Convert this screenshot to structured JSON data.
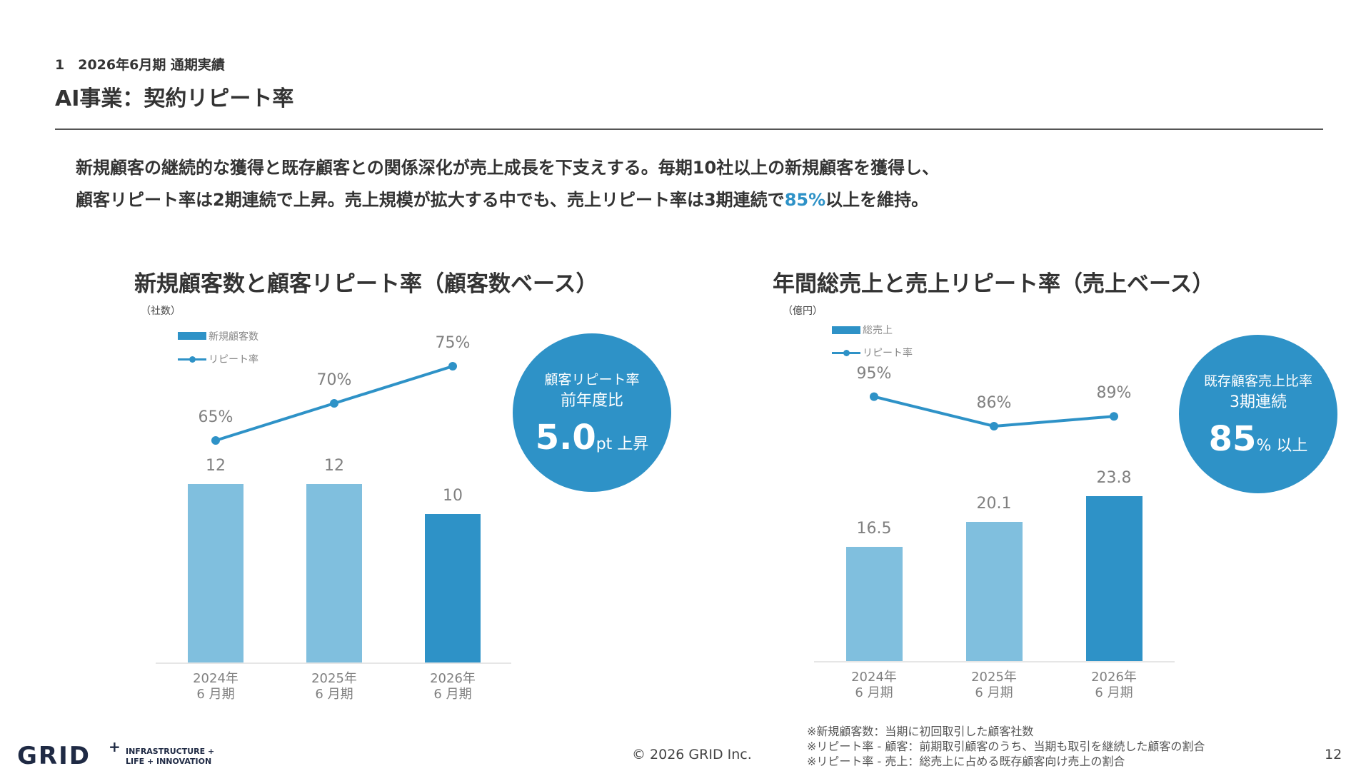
{
  "header": {
    "section": "1　2026年6月期 通期実績",
    "title": "AI事業：契約リピート率"
  },
  "lead": {
    "line1": "新規顧客の継続的な獲得と既存顧客との関係深化が売上成長を下支えする。毎期10社以上の新規顧客を獲得し、",
    "line2_pre": "顧客リピート率は2期連続で上昇。売上規模が拡大する中でも、売上リピート率は3期連続で",
    "line2_hl": "85%",
    "line2_post": "以上を維持。"
  },
  "colors": {
    "accent": "#2e92c7",
    "light_bar": "#80bfde",
    "dark_bar": "#2e92c7",
    "line": "#2e92c7"
  },
  "chart_data": [
    {
      "type": "bar",
      "title": "新規顧客数と顧客リピート率（顧客数ベース）",
      "ylabel": "（社数）",
      "categories": [
        [
          "2024年",
          "6 月期"
        ],
        [
          "2025年",
          "6 月期"
        ],
        [
          "2026年",
          "6 月期"
        ]
      ],
      "series": [
        {
          "name": "新規顧客数",
          "type": "bar",
          "values": [
            12,
            12,
            10
          ],
          "labels": [
            "12",
            "12",
            "10"
          ],
          "colors": [
            "#80bfde",
            "#80bfde",
            "#2e92c7"
          ]
        },
        {
          "name": "リピート率",
          "type": "line",
          "values": [
            65,
            70,
            75
          ],
          "labels": [
            "65%",
            "70%",
            "75%"
          ]
        }
      ],
      "legend": "top-left",
      "grid": false
    },
    {
      "type": "bar",
      "title": "年間総売上と売上リピート率（売上ベース）",
      "ylabel": "（億円）",
      "categories": [
        [
          "2024年",
          "6 月期"
        ],
        [
          "2025年",
          "6 月期"
        ],
        [
          "2026年",
          "6 月期"
        ]
      ],
      "series": [
        {
          "name": "総売上",
          "type": "bar",
          "values": [
            16.5,
            20.1,
            23.8
          ],
          "labels": [
            "16.5",
            "20.1",
            "23.8"
          ],
          "colors": [
            "#80bfde",
            "#80bfde",
            "#2e92c7"
          ]
        },
        {
          "name": "リピート率",
          "type": "line",
          "values": [
            95,
            86,
            89
          ],
          "labels": [
            "95%",
            "86%",
            "89%"
          ]
        }
      ],
      "legend": "top-left",
      "grid": false
    }
  ],
  "callouts": [
    {
      "line1": "顧客リピート率",
      "line2": "前年度比",
      "big": "5.0",
      "small": "pt 上昇"
    },
    {
      "line1": "既存顧客売上比率",
      "line2": "3期連続",
      "big": "85",
      "small": "% 以上"
    }
  ],
  "notes": [
    "※新規顧客数：当期に初回取引した顧客社数",
    "※リピート率 - 顧客：前期取引顧客のうち、当期も取引を継続した顧客の割合",
    "※リピート率 - 売上：総売上に占める既存顧客向け売上の割合"
  ],
  "footer": {
    "copyright": "© 2026 GRID Inc.",
    "page": "12",
    "logo": "GRID",
    "logo_plus": "+",
    "tagline1": "INFRASTRUCTURE +",
    "tagline2": "LIFE + INNOVATION"
  }
}
